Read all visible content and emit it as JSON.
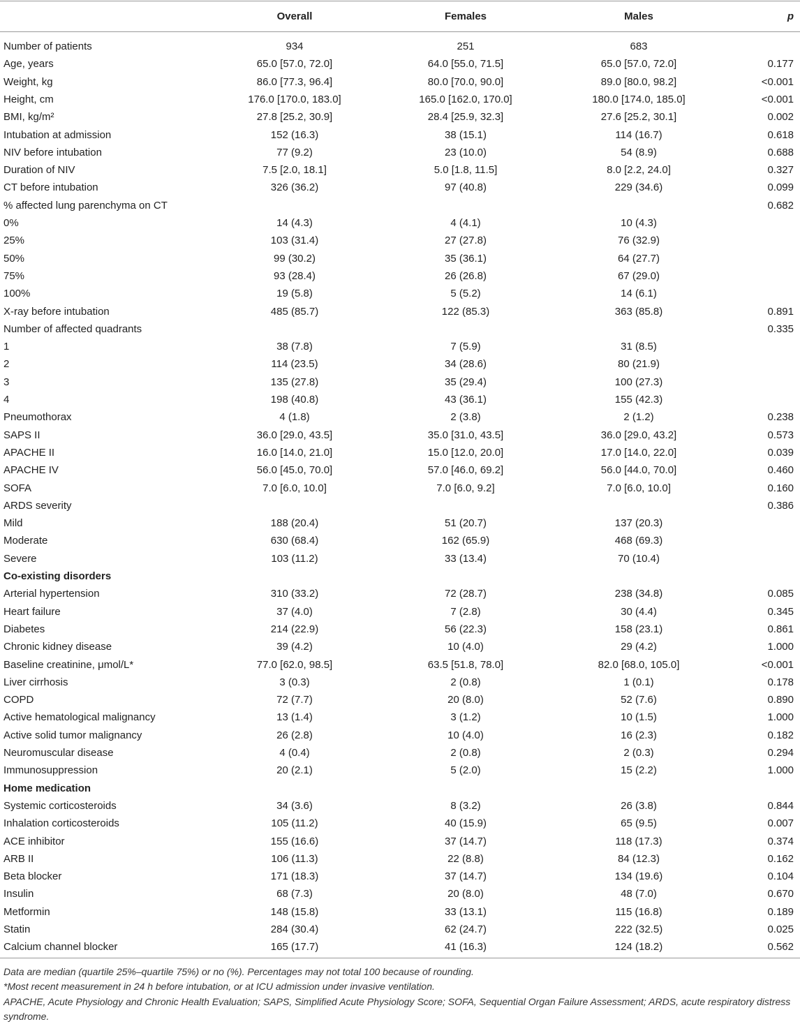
{
  "table": {
    "header": {
      "overall": "Overall",
      "females": "Females",
      "males": "Males",
      "p": "p"
    },
    "rows": [
      {
        "label": "Number of patients",
        "overall": "934",
        "females": "251",
        "males": "683"
      },
      {
        "label": "Age, years",
        "overall": "65.0 [57.0, 72.0]",
        "females": "64.0 [55.0, 71.5]",
        "males": "65.0 [57.0, 72.0]",
        "p": "0.177"
      },
      {
        "label": "Weight, kg",
        "overall": "86.0 [77.3, 96.4]",
        "females": "80.0 [70.0, 90.0]",
        "males": "89.0 [80.0, 98.2]",
        "p": "<0.001"
      },
      {
        "label": "Height, cm",
        "overall": "176.0 [170.0, 183.0]",
        "females": "165.0 [162.0, 170.0]",
        "males": "180.0 [174.0, 185.0]",
        "p": "<0.001"
      },
      {
        "label": "BMI, kg/m²",
        "overall": "27.8 [25.2, 30.9]",
        "females": "28.4 [25.9, 32.3]",
        "males": "27.6 [25.2, 30.1]",
        "p": "0.002"
      },
      {
        "label": "Intubation at admission",
        "overall": "152 (16.3)",
        "females": "38 (15.1)",
        "males": "114 (16.7)",
        "p": "0.618"
      },
      {
        "label": "NIV before intubation",
        "overall": "77 (9.2)",
        "females": "23 (10.0)",
        "males": "54 (8.9)",
        "p": "0.688"
      },
      {
        "label": "Duration of NIV",
        "overall": "7.5 [2.0, 18.1]",
        "females": "5.0 [1.8, 11.5]",
        "males": "8.0 [2.2, 24.0]",
        "p": "0.327"
      },
      {
        "label": "CT before intubation",
        "overall": "326 (36.2)",
        "females": "97 (40.8)",
        "males": "229 (34.6)",
        "p": "0.099"
      },
      {
        "label": "% affected lung parenchyma on CT",
        "p": "0.682"
      },
      {
        "label": "0%",
        "overall": "14 (4.3)",
        "females": "4 (4.1)",
        "males": "10 (4.3)"
      },
      {
        "label": "25%",
        "overall": "103 (31.4)",
        "females": "27 (27.8)",
        "males": "76 (32.9)"
      },
      {
        "label": "50%",
        "overall": "99 (30.2)",
        "females": "35 (36.1)",
        "males": "64 (27.7)"
      },
      {
        "label": "75%",
        "overall": "93 (28.4)",
        "females": "26 (26.8)",
        "males": "67 (29.0)"
      },
      {
        "label": "100%",
        "overall": "19 (5.8)",
        "females": "5 (5.2)",
        "males": "14 (6.1)"
      },
      {
        "label": "X-ray before intubation",
        "overall": "485 (85.7)",
        "females": "122 (85.3)",
        "males": "363 (85.8)",
        "p": "0.891"
      },
      {
        "label": "Number of affected quadrants",
        "p": "0.335"
      },
      {
        "label": "1",
        "overall": "38 (7.8)",
        "females": "7 (5.9)",
        "males": "31 (8.5)"
      },
      {
        "label": "2",
        "overall": "114 (23.5)",
        "females": "34 (28.6)",
        "males": "80 (21.9)"
      },
      {
        "label": "3",
        "overall": "135 (27.8)",
        "females": "35 (29.4)",
        "males": "100 (27.3)"
      },
      {
        "label": "4",
        "overall": "198 (40.8)",
        "females": "43 (36.1)",
        "males": "155 (42.3)"
      },
      {
        "label": "Pneumothorax",
        "overall": "4 (1.8)",
        "females": "2 (3.8)",
        "males": "2 (1.2)",
        "p": "0.238"
      },
      {
        "label": "SAPS II",
        "overall": "36.0 [29.0, 43.5]",
        "females": "35.0 [31.0, 43.5]",
        "males": "36.0 [29.0, 43.2]",
        "p": "0.573"
      },
      {
        "label": "APACHE II",
        "overall": "16.0 [14.0, 21.0]",
        "females": "15.0 [12.0, 20.0]",
        "males": "17.0 [14.0, 22.0]",
        "p": "0.039"
      },
      {
        "label": "APACHE IV",
        "overall": "56.0 [45.0, 70.0]",
        "females": "57.0 [46.0, 69.2]",
        "males": "56.0 [44.0, 70.0]",
        "p": "0.460"
      },
      {
        "label": "SOFA",
        "overall": "7.0 [6.0, 10.0]",
        "females": "7.0 [6.0, 9.2]",
        "males": "7.0 [6.0, 10.0]",
        "p": "0.160"
      },
      {
        "label": "ARDS severity",
        "p": "0.386"
      },
      {
        "label": "Mild",
        "overall": "188 (20.4)",
        "females": "51 (20.7)",
        "males": "137 (20.3)"
      },
      {
        "label": "Moderate",
        "overall": "630 (68.4)",
        "females": "162 (65.9)",
        "males": "468 (69.3)"
      },
      {
        "label": "Severe",
        "overall": "103 (11.2)",
        "females": "33 (13.4)",
        "males": "70 (10.4)"
      },
      {
        "section": "Co-existing disorders"
      },
      {
        "label": "Arterial hypertension",
        "overall": "310 (33.2)",
        "females": "72 (28.7)",
        "males": "238 (34.8)",
        "p": "0.085"
      },
      {
        "label": "Heart failure",
        "overall": "37 (4.0)",
        "females": "7 (2.8)",
        "males": "30 (4.4)",
        "p": "0.345"
      },
      {
        "label": "Diabetes",
        "overall": "214 (22.9)",
        "females": "56 (22.3)",
        "males": "158 (23.1)",
        "p": "0.861"
      },
      {
        "label": "Chronic kidney disease",
        "overall": "39 (4.2)",
        "females": "10 (4.0)",
        "males": "29 (4.2)",
        "p": "1.000"
      },
      {
        "label": "Baseline creatinine, μmol/L*",
        "overall": "77.0 [62.0, 98.5]",
        "females": "63.5 [51.8, 78.0]",
        "males": "82.0 [68.0, 105.0]",
        "p": "<0.001"
      },
      {
        "label": "Liver cirrhosis",
        "overall": "3 (0.3)",
        "females": "2 (0.8)",
        "males": "1 (0.1)",
        "p": "0.178"
      },
      {
        "label": "COPD",
        "overall": "72 (7.7)",
        "females": "20 (8.0)",
        "males": "52 (7.6)",
        "p": "0.890"
      },
      {
        "label": "Active hematological malignancy",
        "overall": "13 (1.4)",
        "females": "3 (1.2)",
        "males": "10 (1.5)",
        "p": "1.000"
      },
      {
        "label": "Active solid tumor malignancy",
        "overall": "26 (2.8)",
        "females": "10 (4.0)",
        "males": "16 (2.3)",
        "p": "0.182"
      },
      {
        "label": "Neuromuscular disease",
        "overall": "4 (0.4)",
        "females": "2 (0.8)",
        "males": "2 (0.3)",
        "p": "0.294"
      },
      {
        "label": "Immunosuppression",
        "overall": "20 (2.1)",
        "females": "5 (2.0)",
        "males": "15 (2.2)",
        "p": "1.000"
      },
      {
        "section": "Home medication"
      },
      {
        "label": "Systemic corticosteroids",
        "overall": "34 (3.6)",
        "females": "8 (3.2)",
        "males": "26 (3.8)",
        "p": "0.844"
      },
      {
        "label": "Inhalation corticosteroids",
        "overall": "105 (11.2)",
        "females": "40 (15.9)",
        "males": "65 (9.5)",
        "p": "0.007"
      },
      {
        "label": "ACE inhibitor",
        "overall": "155 (16.6)",
        "females": "37 (14.7)",
        "males": "118 (17.3)",
        "p": "0.374"
      },
      {
        "label": "ARB II",
        "overall": "106 (11.3)",
        "females": "22 (8.8)",
        "males": "84 (12.3)",
        "p": "0.162"
      },
      {
        "label": "Beta blocker",
        "overall": "171 (18.3)",
        "females": "37 (14.7)",
        "males": "134 (19.6)",
        "p": "0.104"
      },
      {
        "label": "Insulin",
        "overall": "68 (7.3)",
        "females": "20 (8.0)",
        "males": "48 (7.0)",
        "p": "0.670"
      },
      {
        "label": "Metformin",
        "overall": "148 (15.8)",
        "females": "33 (13.1)",
        "males": "115 (16.8)",
        "p": "0.189"
      },
      {
        "label": "Statin",
        "overall": "284 (30.4)",
        "females": "62 (24.7)",
        "males": "222 (32.5)",
        "p": "0.025"
      },
      {
        "label": "Calcium channel blocker",
        "overall": "165 (17.7)",
        "females": "41 (16.3)",
        "males": "124 (18.2)",
        "p": "0.562"
      }
    ]
  },
  "footnotes": [
    "Data are median (quartile 25%–quartile 75%) or no (%). Percentages may not total 100 because of rounding.",
    "*Most recent measurement in 24 h before intubation, or at ICU admission under invasive ventilation.",
    "APACHE, Acute Physiology and Chronic Health Evaluation; SAPS, Simplified Acute Physiology Score; SOFA, Sequential Organ Failure Assessment; ARDS, acute respiratory distress syndrome."
  ]
}
